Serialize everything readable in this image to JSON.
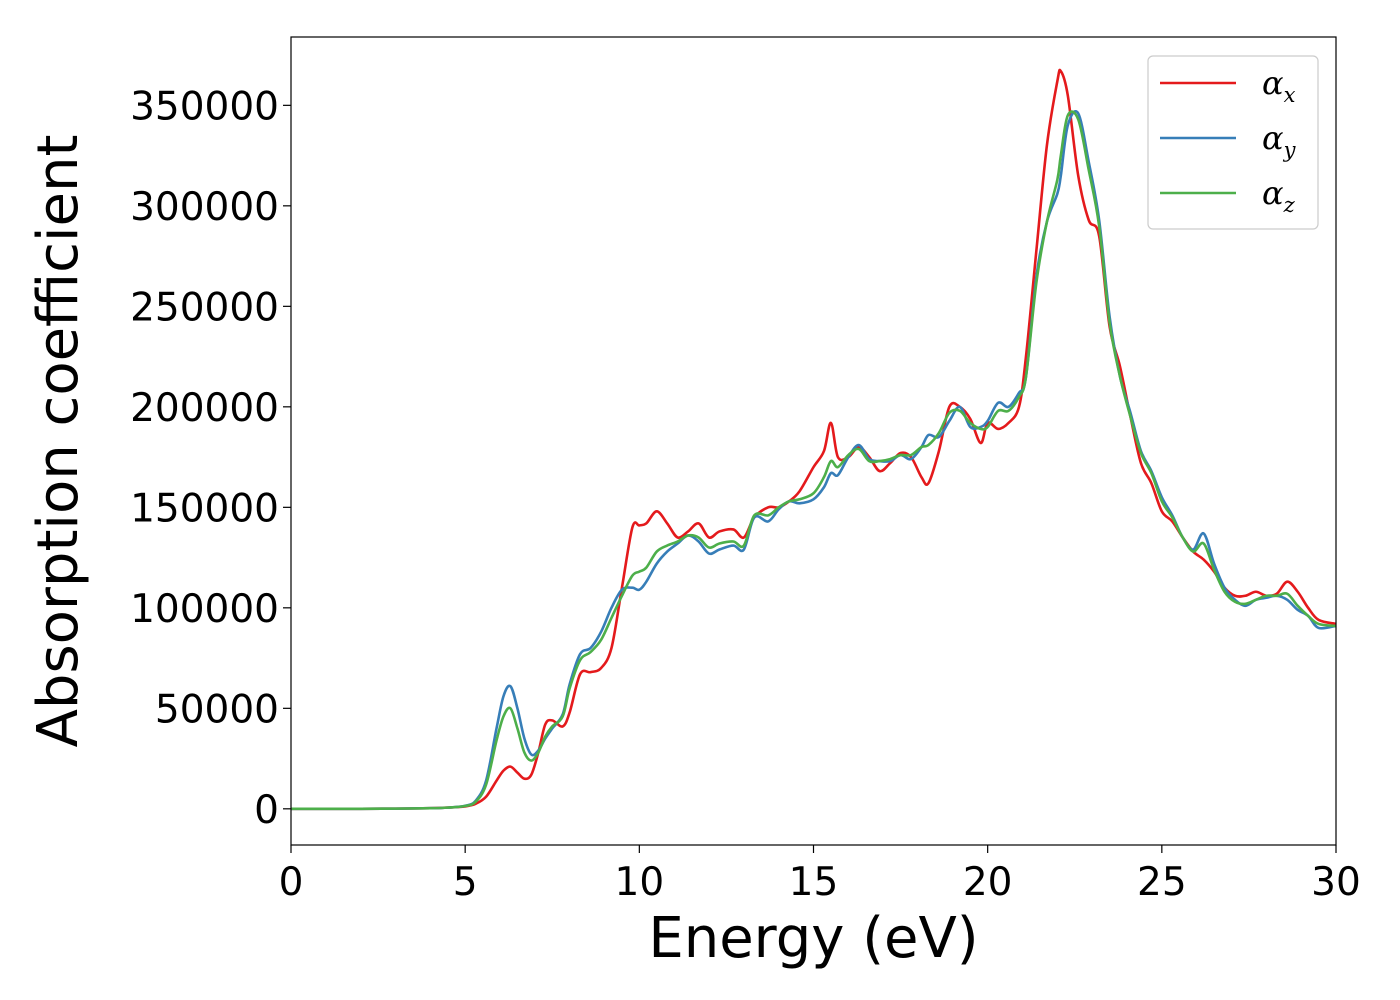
{
  "chart_data": {
    "type": "line",
    "title": "",
    "xlabel": "Energy (eV)",
    "ylabel": "Absorption coefficient",
    "xlim": [
      0,
      30
    ],
    "ylim": [
      -18000,
      384000
    ],
    "xticks": [
      0,
      5,
      10,
      15,
      20,
      25,
      30
    ],
    "yticks": [
      0,
      50000,
      100000,
      150000,
      200000,
      250000,
      300000,
      350000
    ],
    "grid": false,
    "legend_position": "top-right",
    "series": [
      {
        "name": "α",
        "name_subscript": "x",
        "color": "#e41a1c",
        "x": [
          0,
          1,
          2,
          3,
          4,
          4.5,
          5,
          5.3,
          5.6,
          5.9,
          6.1,
          6.3,
          6.5,
          6.7,
          6.9,
          7.1,
          7.3,
          7.5,
          7.8,
          8.0,
          8.3,
          8.6,
          8.9,
          9.2,
          9.5,
          9.8,
          10.0,
          10.2,
          10.5,
          10.8,
          11.1,
          11.4,
          11.7,
          12.0,
          12.3,
          12.7,
          13.0,
          13.3,
          13.7,
          14.0,
          14.3,
          14.6,
          15.0,
          15.3,
          15.5,
          15.7,
          16.0,
          16.3,
          16.6,
          16.9,
          17.2,
          17.5,
          17.8,
          18.1,
          18.3,
          18.6,
          18.9,
          19.2,
          19.5,
          19.8,
          20.0,
          20.3,
          20.6,
          20.9,
          21.1,
          21.4,
          21.7,
          22.0,
          22.1,
          22.3,
          22.6,
          22.9,
          23.2,
          23.5,
          23.8,
          24.1,
          24.4,
          24.7,
          25.0,
          25.3,
          25.6,
          25.9,
          26.2,
          26.5,
          26.8,
          27.1,
          27.4,
          27.7,
          28.0,
          28.3,
          28.6,
          28.9,
          29.2,
          29.5,
          30
        ],
        "y": [
          0,
          0,
          0,
          100,
          300,
          600,
          1200,
          2500,
          6000,
          14000,
          19000,
          21000,
          18000,
          15000,
          17000,
          28000,
          42000,
          44000,
          41000,
          48000,
          67000,
          68000,
          70000,
          80000,
          110000,
          140000,
          141000,
          142000,
          148000,
          142000,
          135000,
          138000,
          142000,
          135000,
          138000,
          139000,
          135000,
          145000,
          150000,
          150000,
          153000,
          158000,
          170000,
          178000,
          192000,
          175000,
          175000,
          180000,
          175000,
          168000,
          172000,
          177000,
          175000,
          165000,
          162000,
          178000,
          200000,
          200000,
          194000,
          182000,
          192000,
          189000,
          192000,
          200000,
          225000,
          278000,
          330000,
          362000,
          367000,
          355000,
          315000,
          293000,
          285000,
          240000,
          220000,
          195000,
          172000,
          162000,
          148000,
          143000,
          135000,
          128000,
          124000,
          118000,
          110000,
          106000,
          106000,
          108000,
          106000,
          107000,
          113000,
          108000,
          100000,
          94000,
          92000
        ]
      },
      {
        "name": "α",
        "name_subscript": "y",
        "color": "#377eb8",
        "x": [
          0,
          1,
          2,
          3,
          4,
          4.5,
          5,
          5.3,
          5.6,
          5.9,
          6.1,
          6.3,
          6.5,
          6.7,
          6.9,
          7.1,
          7.3,
          7.5,
          7.8,
          8.0,
          8.3,
          8.6,
          8.9,
          9.2,
          9.5,
          9.8,
          10.0,
          10.2,
          10.5,
          10.8,
          11.1,
          11.4,
          11.7,
          12.0,
          12.3,
          12.7,
          13.0,
          13.3,
          13.7,
          14.0,
          14.3,
          14.6,
          15.0,
          15.3,
          15.5,
          15.7,
          16.0,
          16.3,
          16.6,
          16.9,
          17.2,
          17.5,
          17.8,
          18.1,
          18.3,
          18.6,
          18.9,
          19.2,
          19.5,
          19.8,
          20.0,
          20.3,
          20.6,
          20.9,
          21.1,
          21.4,
          21.7,
          22.0,
          22.1,
          22.3,
          22.6,
          22.9,
          23.2,
          23.5,
          23.8,
          24.1,
          24.4,
          24.7,
          25.0,
          25.3,
          25.6,
          25.9,
          26.2,
          26.5,
          26.8,
          27.1,
          27.4,
          27.7,
          28.0,
          28.3,
          28.6,
          28.9,
          29.2,
          29.5,
          30
        ],
        "y": [
          0,
          0,
          0,
          100,
          300,
          600,
          1500,
          4000,
          14000,
          40000,
          56000,
          61000,
          50000,
          35000,
          27000,
          29000,
          35000,
          40000,
          47000,
          62000,
          77000,
          80000,
          88000,
          100000,
          109000,
          110000,
          109000,
          113000,
          122000,
          128000,
          132000,
          136000,
          133000,
          127000,
          129000,
          131000,
          129000,
          145000,
          143000,
          149000,
          153000,
          152000,
          154000,
          160000,
          167000,
          166000,
          175000,
          181000,
          174000,
          173000,
          173000,
          176000,
          174000,
          180000,
          186000,
          185000,
          193000,
          200000,
          190000,
          190000,
          193000,
          202000,
          200000,
          207000,
          215000,
          265000,
          292000,
          306000,
          315000,
          340000,
          346000,
          322000,
          293000,
          245000,
          215000,
          197000,
          178000,
          168000,
          155000,
          146000,
          135000,
          129000,
          137000,
          122000,
          110000,
          104000,
          101000,
          104000,
          105000,
          106000,
          104000,
          99000,
          96000,
          90000,
          91000
        ]
      },
      {
        "name": "α",
        "name_subscript": "z",
        "color": "#4daf4a",
        "x": [
          0,
          1,
          2,
          3,
          4,
          4.5,
          5,
          5.3,
          5.6,
          5.9,
          6.1,
          6.3,
          6.5,
          6.7,
          6.9,
          7.1,
          7.3,
          7.5,
          7.8,
          8.0,
          8.3,
          8.6,
          8.9,
          9.2,
          9.5,
          9.8,
          10.0,
          10.2,
          10.5,
          10.8,
          11.1,
          11.4,
          11.7,
          12.0,
          12.3,
          12.7,
          13.0,
          13.3,
          13.7,
          14.0,
          14.3,
          14.6,
          15.0,
          15.3,
          15.5,
          15.7,
          16.0,
          16.3,
          16.6,
          16.9,
          17.2,
          17.5,
          17.8,
          18.1,
          18.3,
          18.6,
          18.9,
          19.2,
          19.5,
          19.8,
          20.0,
          20.3,
          20.6,
          20.9,
          21.1,
          21.4,
          21.7,
          22.0,
          22.1,
          22.3,
          22.6,
          22.9,
          23.2,
          23.5,
          23.8,
          24.1,
          24.4,
          24.7,
          25.0,
          25.3,
          25.6,
          25.9,
          26.2,
          26.5,
          26.8,
          27.1,
          27.4,
          27.7,
          28.0,
          28.3,
          28.6,
          28.9,
          29.2,
          29.5,
          30
        ],
        "y": [
          0,
          0,
          0,
          100,
          300,
          600,
          1400,
          3500,
          12000,
          34000,
          46000,
          50000,
          40000,
          28000,
          24000,
          28000,
          36000,
          41000,
          46000,
          60000,
          74000,
          78000,
          84000,
          95000,
          106000,
          116000,
          118000,
          120000,
          128000,
          131000,
          133000,
          136000,
          135000,
          130000,
          132000,
          133000,
          131000,
          146000,
          146000,
          150000,
          153000,
          154000,
          157000,
          165000,
          173000,
          170000,
          176000,
          179000,
          173000,
          173000,
          174000,
          176000,
          176000,
          180000,
          181000,
          187000,
          197000,
          198000,
          192000,
          189000,
          190000,
          198000,
          198000,
          205000,
          215000,
          262000,
          292000,
          313000,
          325000,
          345000,
          343000,
          318000,
          290000,
          242000,
          215000,
          195000,
          177000,
          167000,
          153000,
          145000,
          135000,
          128000,
          132000,
          119000,
          108000,
          103000,
          102000,
          104000,
          106000,
          106000,
          107000,
          101000,
          96000,
          92000,
          91000
        ]
      }
    ]
  }
}
